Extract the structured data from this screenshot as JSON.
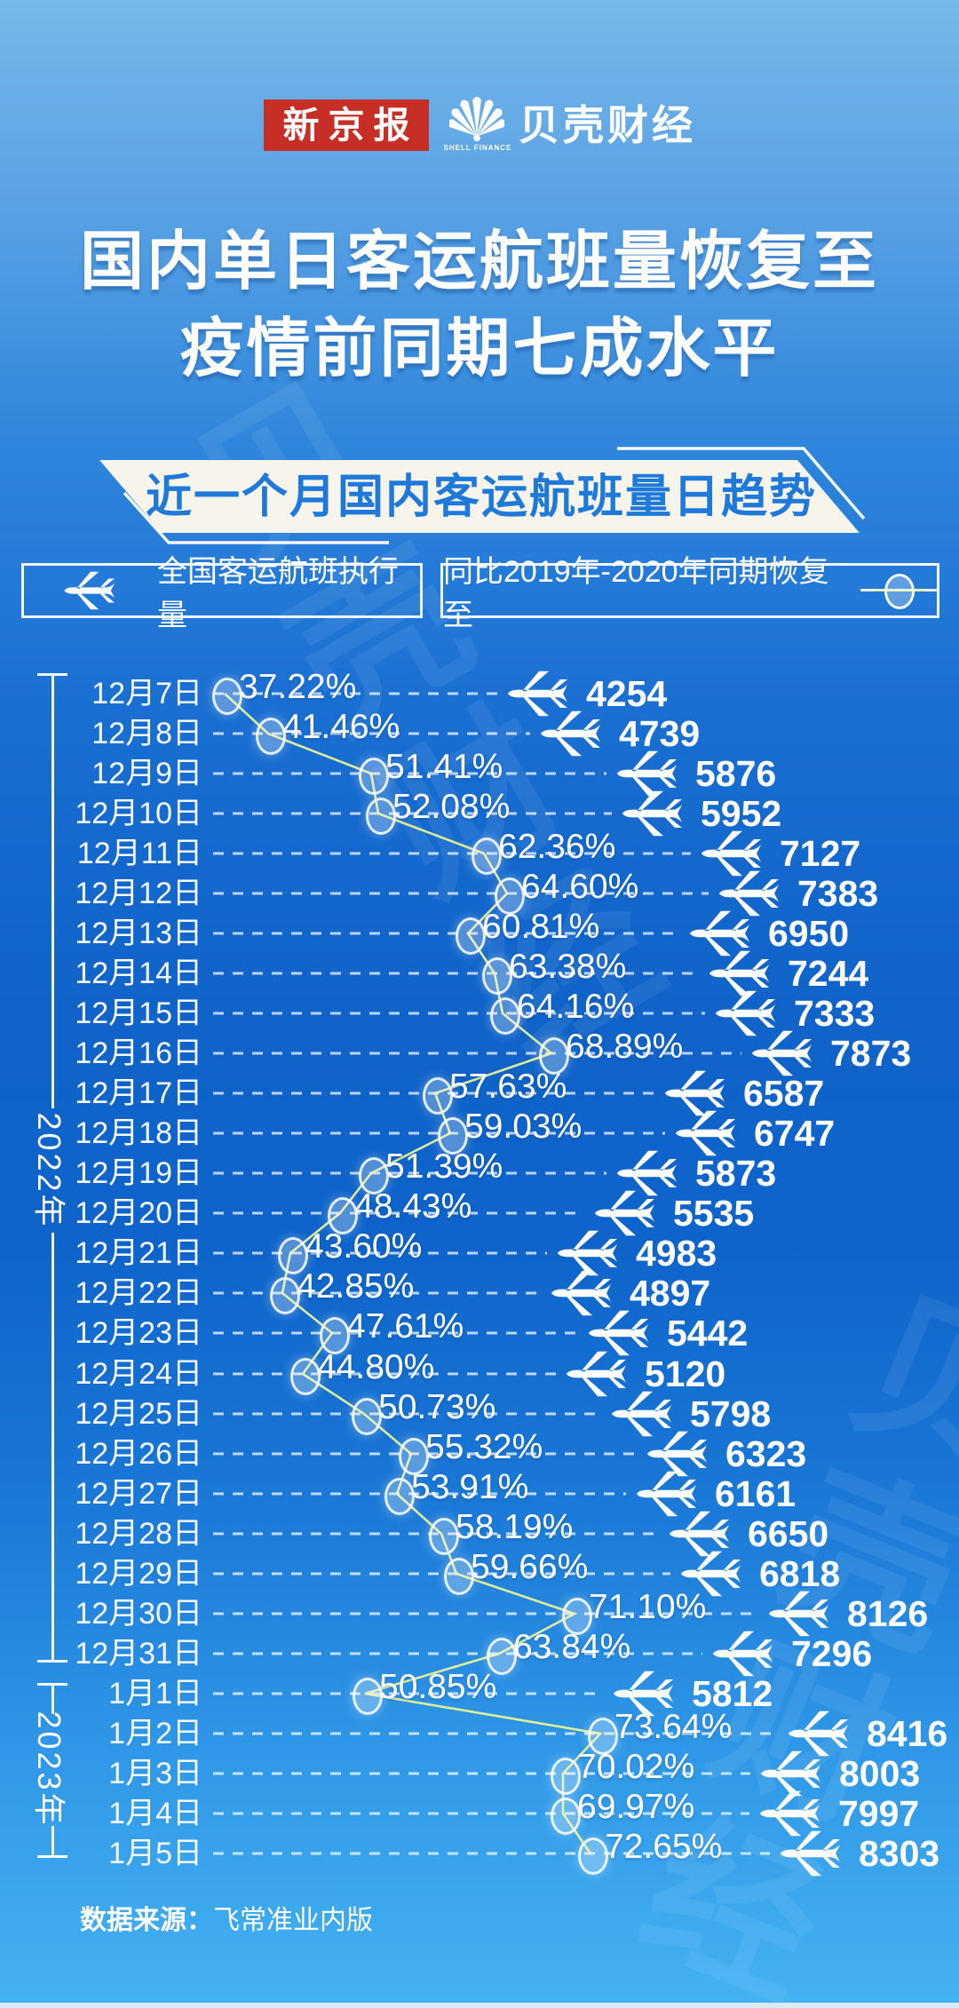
{
  "header": {
    "brand_left": "新京报",
    "brand_right": "贝壳财经",
    "brand_right_sub": "SHELL FINANCE"
  },
  "title": {
    "line1": "国内单日客运航班量恢复至",
    "line2": "疫情前同期七成水平"
  },
  "banner": {
    "text": "近一个月国内客运航班量日趋势"
  },
  "legend": {
    "flights_label": "全国客运航班执行量",
    "recovery_label": "同比2019年-2020年同期恢复至"
  },
  "footer": {
    "source_label": "数据来源：",
    "source_value": "飞常准业内版"
  },
  "colors": {
    "background_top": "#75b8ea",
    "background_mid": "#0f63c9",
    "background_bottom": "#44b2f2",
    "polyline": "#e8f295",
    "banner_bg": "#f7f4ec",
    "banner_text": "#1f79d8",
    "logo_red": "#c72f26",
    "text": "#ffffff"
  },
  "chart_data": {
    "type": "line",
    "title": "近一个月国内客运航班量日趋势",
    "categories": [
      "12月7日",
      "12月8日",
      "12月9日",
      "12月10日",
      "12月11日",
      "12月12日",
      "12月13日",
      "12月14日",
      "12月15日",
      "12月16日",
      "12月17日",
      "12月18日",
      "12月19日",
      "12月20日",
      "12月21日",
      "12月22日",
      "12月23日",
      "12月24日",
      "12月25日",
      "12月26日",
      "12月27日",
      "12月28日",
      "12月29日",
      "12月30日",
      "12月31日",
      "1月1日",
      "1月2日",
      "1月3日",
      "1月4日",
      "1月5日"
    ],
    "series": [
      {
        "name": "同比2019年-2020年同期恢复至",
        "unit": "%",
        "values": [
          37.22,
          41.46,
          51.41,
          52.08,
          62.36,
          64.6,
          60.81,
          63.38,
          64.16,
          68.89,
          57.63,
          59.03,
          51.39,
          48.43,
          43.6,
          42.85,
          47.61,
          44.8,
          50.73,
          55.32,
          53.91,
          58.19,
          59.66,
          71.1,
          63.84,
          50.85,
          73.64,
          70.02,
          69.97,
          72.65
        ]
      },
      {
        "name": "全国客运航班执行量",
        "unit": "班",
        "values": [
          4254,
          4739,
          5876,
          5952,
          7127,
          7383,
          6950,
          7244,
          7333,
          7873,
          6587,
          6747,
          5873,
          5535,
          4983,
          4897,
          5442,
          5120,
          5798,
          6323,
          6161,
          6650,
          6818,
          8126,
          7296,
          5812,
          8416,
          8003,
          7997,
          8303
        ]
      }
    ],
    "year_groups": [
      {
        "label": "2022年",
        "from": "12月7日",
        "to": "12月31日"
      },
      {
        "label": "2023年",
        "from": "1月1日",
        "to": "1月5日"
      }
    ],
    "legend_position": "top",
    "grid": "dashed-horizontal-per-row",
    "axis": "dates listed vertically, percent markers and flight counts positioned proportionally"
  }
}
